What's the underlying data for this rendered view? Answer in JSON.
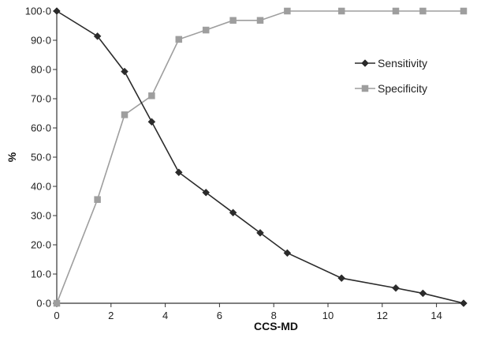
{
  "chart_data": {
    "type": "line",
    "title": "",
    "xlabel": "CCS-MD",
    "ylabel": "%",
    "xlim": [
      0,
      15
    ],
    "ylim": [
      0,
      100
    ],
    "x_ticks": [
      "0",
      "2",
      "4",
      "6",
      "8",
      "10",
      "12",
      "14"
    ],
    "y_ticks": [
      "0·0",
      "10·0",
      "20·0",
      "30·0",
      "40·0",
      "50·0",
      "60·0",
      "70·0",
      "80·0",
      "90·0",
      "100·0"
    ],
    "grid": false,
    "legend_position": "right",
    "series": [
      {
        "name": "Sensitivity",
        "marker": "diamond",
        "color": "#2b2b2b",
        "x": [
          0,
          1.5,
          2.5,
          3.5,
          4.5,
          5.5,
          6.5,
          7.5,
          8.5,
          10.5,
          12.5,
          13.5,
          15
        ],
        "y": [
          100,
          91.4,
          79.3,
          62.1,
          44.8,
          37.9,
          31.0,
          24.1,
          17.2,
          8.6,
          5.2,
          3.4,
          0
        ]
      },
      {
        "name": "Specificity",
        "marker": "square",
        "color": "#9e9e9e",
        "x": [
          0,
          1.5,
          2.5,
          3.5,
          4.5,
          5.5,
          6.5,
          7.5,
          8.5,
          10.5,
          12.5,
          13.5,
          15
        ],
        "y": [
          0,
          35.5,
          64.5,
          71.0,
          90.3,
          93.5,
          96.8,
          96.8,
          100,
          100,
          100,
          100,
          100
        ]
      }
    ]
  }
}
